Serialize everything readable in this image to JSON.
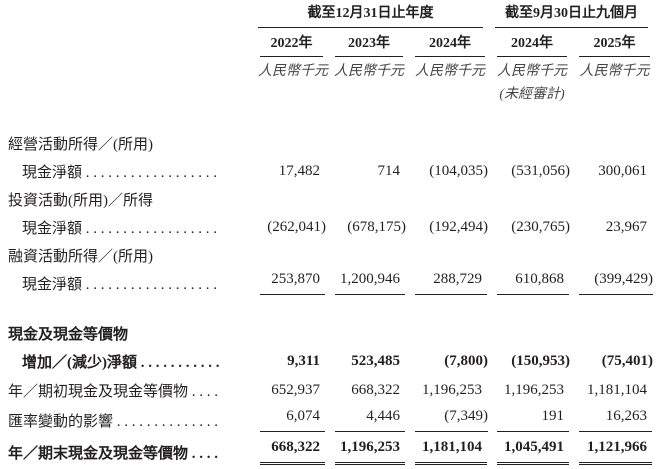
{
  "header": {
    "groups": [
      "截至12月31日止年度",
      "截至9月30日止九個月"
    ],
    "years": [
      "2022年",
      "2023年",
      "2024年",
      "2024年",
      "2025年"
    ],
    "units": [
      "人民幣千元",
      "人民幣千元",
      "人民幣千元",
      "人民幣千元",
      "人民幣千元"
    ],
    "unaudited_note": "(未經審計)"
  },
  "rows": [
    {
      "label": "經營活動所得／(所用)"
    },
    {
      "label": "現金淨額 . . . . . . . . . . . . . . . . . .",
      "values": [
        "17,482",
        "714",
        "(104,035)",
        "(531,056)",
        "300,061"
      ]
    },
    {
      "label": "投資活動(所用)／所得"
    },
    {
      "label": "現金淨額 . . . . . . . . . . . . . . . . . .",
      "values": [
        "(262,041)",
        "(678,175)",
        "(192,494)",
        "(230,765)",
        "23,967"
      ]
    },
    {
      "label": "融資活動所得／(所用)"
    },
    {
      "label": "現金淨額 . . . . . . . . . . . . . . . . . .",
      "values": [
        "253,870",
        "1,200,946",
        "288,729",
        "610,868",
        "(399,429)"
      ]
    },
    {
      "label": "現金及現金等價物"
    },
    {
      "label": "增加／(減少)淨額 . . . . . . . . . . .",
      "values": [
        "9,311",
        "523,485",
        "(7,800)",
        "(150,953)",
        "(75,401)"
      ]
    },
    {
      "label": "年／期初現金及現金等價物 . . . .",
      "values": [
        "652,937",
        "668,322",
        "1,196,253",
        "1,196,253",
        "1,181,104"
      ]
    },
    {
      "label": "匯率變動的影響 . . . . . . . . . . . . . .",
      "values": [
        "6,074",
        "4,446",
        "(7,349)",
        "191",
        "16,263"
      ]
    },
    {
      "label": "年／期末現金及現金等價物 . . . .",
      "values": [
        "668,322",
        "1,196,253",
        "1,181,104",
        "1,045,491",
        "1,121,966"
      ]
    }
  ]
}
